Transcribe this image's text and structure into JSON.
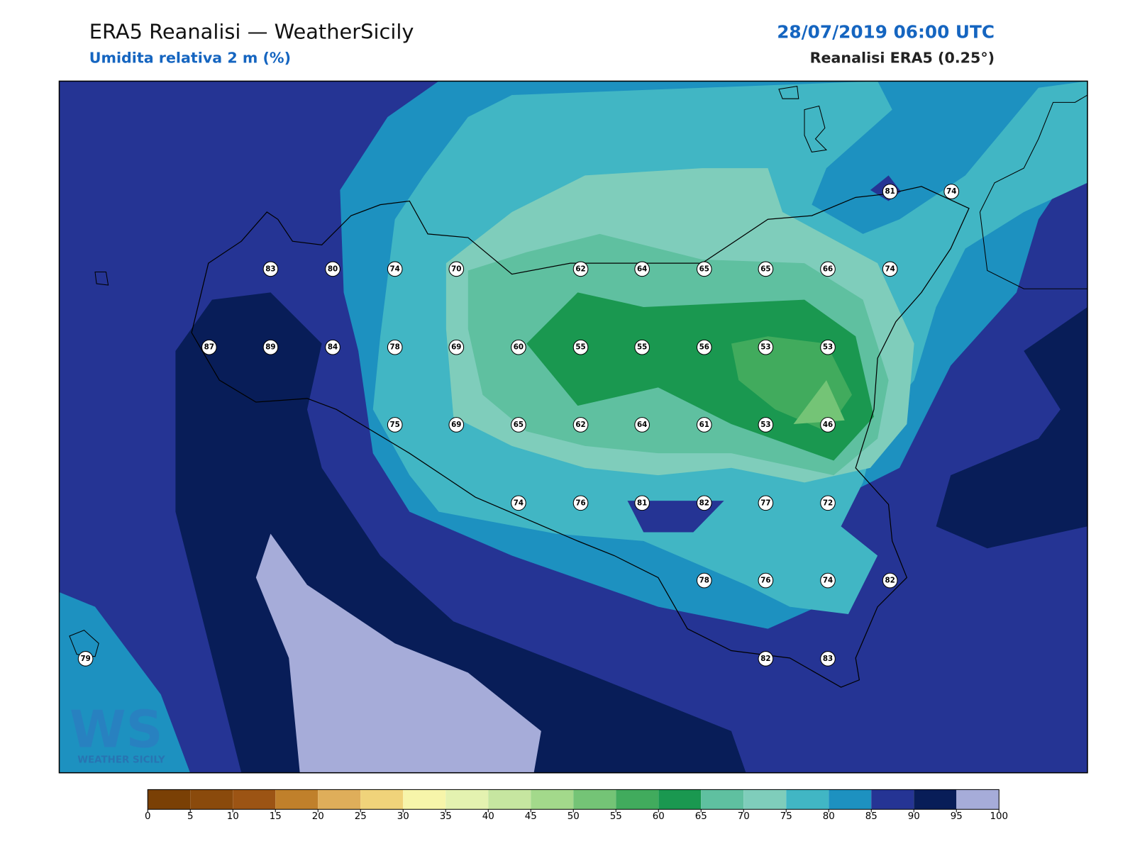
{
  "header": {
    "title": "ERA5 Reanalisi — WeatherSicily",
    "subtitle": "Umidita relativa 2 m (%)",
    "datetime": "28/07/2019 06:00 UTC",
    "source": "Reanalisi ERA5 (0.25°)"
  },
  "logo": {
    "mark": "WS",
    "name": "WEATHER SICILY"
  },
  "stations": [
    81,
    74,
    83,
    80,
    74,
    70,
    62,
    64,
    65,
    65,
    66,
    74,
    87,
    89,
    84,
    78,
    69,
    60,
    55,
    55,
    56,
    53,
    53,
    75,
    69,
    65,
    62,
    64,
    61,
    53,
    46,
    74,
    76,
    81,
    82,
    77,
    72,
    78,
    76,
    74,
    82,
    79,
    82,
    83
  ],
  "colorbar": {
    "ticks": [
      0,
      5,
      10,
      15,
      20,
      25,
      30,
      35,
      40,
      45,
      50,
      55,
      60,
      65,
      70,
      75,
      80,
      85,
      90,
      95,
      100
    ],
    "colors": [
      "#7a4005",
      "#8a4a0c",
      "#9c5414",
      "#c0802b",
      "#dfae5a",
      "#f0d37a",
      "#f7f5aa",
      "#e4f2b0",
      "#c6e6a0",
      "#a3d98b",
      "#74c476",
      "#41ab5d",
      "#1a9850",
      "#5fc0a0",
      "#7fcdbb",
      "#41b6c4",
      "#1d91c0",
      "#253494",
      "#081d58",
      "#a6acd9"
    ]
  }
}
